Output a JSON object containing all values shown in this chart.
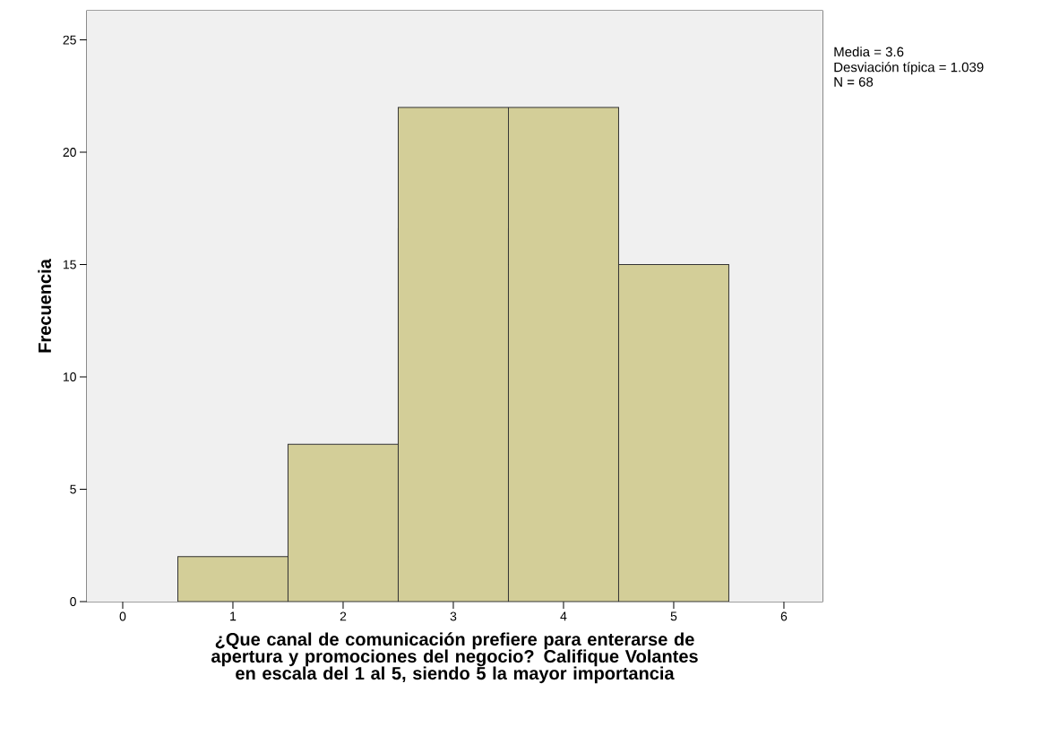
{
  "chart_data": {
    "type": "histogram",
    "xlabel": "¿Que canal de comunicación prefiere para enterarse de apertura y promociones del negocio? Califique Volantes en escala del 1 al 5, siendo 5 la mayor importancia",
    "ylabel": "Frecuencia",
    "bins": [
      0.5,
      1.5,
      2.5,
      3.5,
      4.5,
      5.5
    ],
    "values": [
      2,
      7,
      22,
      22,
      15
    ],
    "color": "#d3ce98",
    "xlim": [
      -0.325,
      6.35
    ],
    "ylim": [
      0,
      26.3
    ],
    "xticks": [
      0,
      1,
      2,
      3,
      4,
      5,
      6
    ],
    "yticks": [
      0,
      5,
      10,
      15,
      20,
      25
    ],
    "grid": false,
    "annotations": [
      "Media = 3.6",
      "Desviación típica = 1.039",
      "N = 68"
    ]
  }
}
